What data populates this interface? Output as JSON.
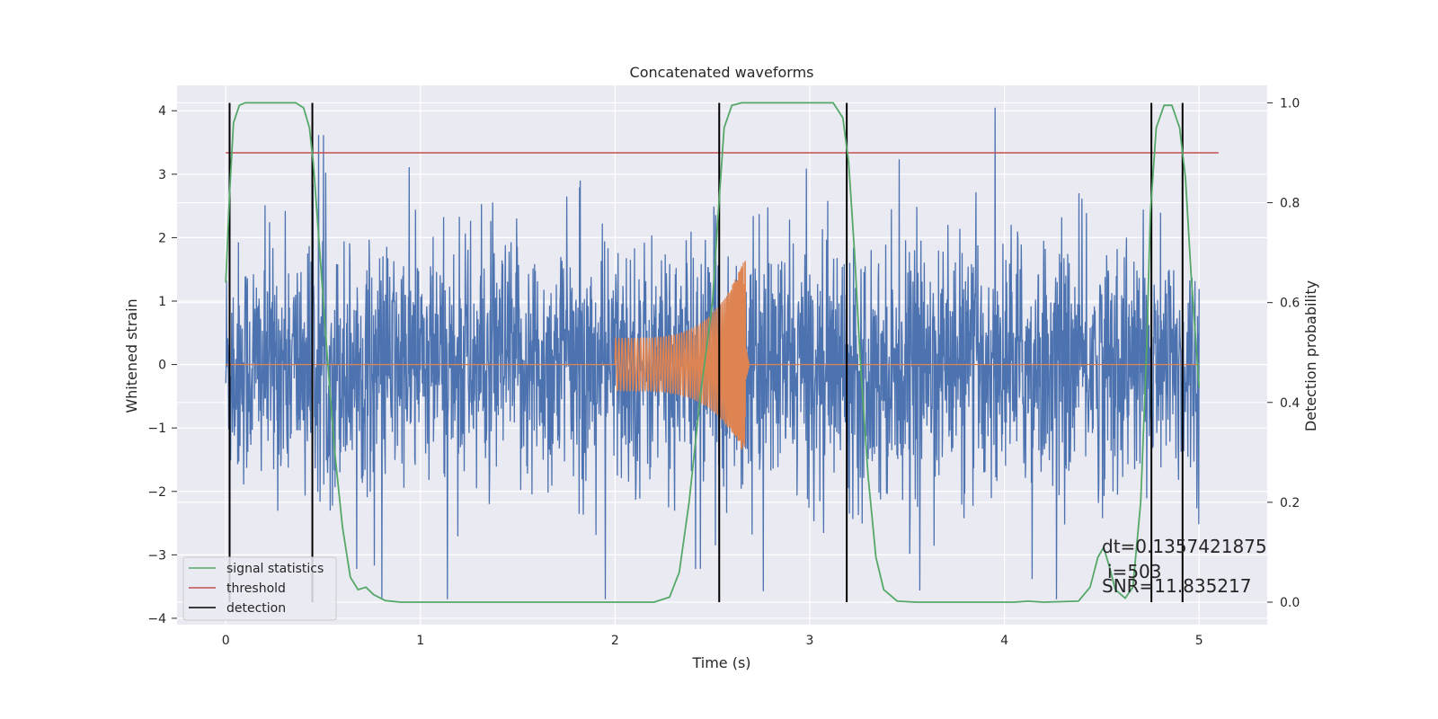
{
  "chart_data": {
    "type": "line",
    "title": "Concatenated waveforms",
    "xlabel": "Time (s)",
    "ylabel": "Whitened strain",
    "y2label": "Detection probability",
    "xlim": [
      -0.25,
      5.35
    ],
    "ylim": [
      -4.1,
      4.4
    ],
    "y2lim": [
      -0.045,
      1.035
    ],
    "xticks": [
      "0",
      "1",
      "2",
      "3",
      "4",
      "5"
    ],
    "xtick_values": [
      0,
      1,
      2,
      3,
      4,
      5
    ],
    "yticks": [
      "−4",
      "−3",
      "−2",
      "−1",
      "0",
      "1",
      "2",
      "3",
      "4"
    ],
    "ytick_values": [
      -4,
      -3,
      -2,
      -1,
      0,
      1,
      2,
      3,
      4
    ],
    "y2ticks": [
      "0.0",
      "0.2",
      "0.4",
      "0.6",
      "0.8",
      "1.0"
    ],
    "y2tick_values": [
      0.0,
      0.2,
      0.4,
      0.6,
      0.8,
      1.0
    ],
    "grid": true,
    "legend_position": "lower-left",
    "legend": [
      {
        "name": "signal statistics",
        "color": "#55a868"
      },
      {
        "name": "threshold",
        "color": "#c44e52"
      },
      {
        "name": "detection",
        "color": "#000000"
      }
    ],
    "strain": {
      "color": "#4c72b0",
      "x_range": [
        0,
        5.0
      ],
      "typical_amplitude": 1.0,
      "peak_max": 4.05,
      "peak_min": -3.7
    },
    "waveform": {
      "color": "#dd8452",
      "start_time": 2.0,
      "merger_time": 2.67,
      "start_amplitude": 0.42,
      "peak_max": 1.7,
      "peak_min": -1.45,
      "end_time": 5.0
    },
    "signal_statistics": {
      "color": "#55a868",
      "points": [
        [
          0.0,
          0.64
        ],
        [
          0.02,
          0.82
        ],
        [
          0.04,
          0.96
        ],
        [
          0.07,
          0.995
        ],
        [
          0.1,
          1.0
        ],
        [
          0.36,
          1.0
        ],
        [
          0.4,
          0.99
        ],
        [
          0.43,
          0.95
        ],
        [
          0.45,
          0.88
        ],
        [
          0.48,
          0.72
        ],
        [
          0.52,
          0.5
        ],
        [
          0.56,
          0.3
        ],
        [
          0.6,
          0.15
        ],
        [
          0.64,
          0.05
        ],
        [
          0.68,
          0.025
        ],
        [
          0.72,
          0.03
        ],
        [
          0.76,
          0.015
        ],
        [
          0.82,
          0.003
        ],
        [
          0.9,
          0.0
        ],
        [
          2.2,
          0.0
        ],
        [
          2.28,
          0.01
        ],
        [
          2.33,
          0.06
        ],
        [
          2.38,
          0.2
        ],
        [
          2.44,
          0.42
        ],
        [
          2.5,
          0.6
        ],
        [
          2.53,
          0.78
        ],
        [
          2.56,
          0.95
        ],
        [
          2.6,
          0.995
        ],
        [
          2.65,
          1.0
        ],
        [
          3.12,
          1.0
        ],
        [
          3.17,
          0.97
        ],
        [
          3.2,
          0.88
        ],
        [
          3.23,
          0.7
        ],
        [
          3.26,
          0.48
        ],
        [
          3.3,
          0.25
        ],
        [
          3.34,
          0.09
        ],
        [
          3.38,
          0.025
        ],
        [
          3.45,
          0.002
        ],
        [
          3.55,
          0.0
        ],
        [
          4.05,
          0.0
        ],
        [
          4.12,
          0.002
        ],
        [
          4.2,
          0.0
        ],
        [
          4.38,
          0.002
        ],
        [
          4.44,
          0.03
        ],
        [
          4.48,
          0.09
        ],
        [
          4.51,
          0.11
        ],
        [
          4.54,
          0.07
        ],
        [
          4.57,
          0.025
        ],
        [
          4.62,
          0.008
        ],
        [
          4.66,
          0.03
        ],
        [
          4.7,
          0.2
        ],
        [
          4.73,
          0.5
        ],
        [
          4.75,
          0.78
        ],
        [
          4.78,
          0.95
        ],
        [
          4.82,
          0.995
        ],
        [
          4.86,
          0.995
        ],
        [
          4.9,
          0.95
        ],
        [
          4.93,
          0.85
        ],
        [
          4.96,
          0.65
        ],
        [
          5.0,
          0.43
        ]
      ]
    },
    "threshold": {
      "color": "#c44e52",
      "x_range": [
        0,
        5.1
      ],
      "value": 0.9
    },
    "detections": {
      "color": "#000000",
      "times": [
        0.02,
        0.445,
        2.535,
        3.19,
        4.755,
        4.915
      ],
      "y_range": [
        0.0,
        1.0
      ]
    },
    "annotation": {
      "line1": "dt=0.1357421875",
      "line2": "i=503",
      "line3": "SNR=11.835217"
    }
  }
}
